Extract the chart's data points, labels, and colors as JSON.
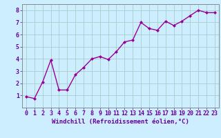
{
  "x": [
    0,
    1,
    2,
    3,
    4,
    5,
    6,
    7,
    8,
    9,
    10,
    11,
    12,
    13,
    14,
    15,
    16,
    17,
    18,
    19,
    20,
    21,
    22,
    23
  ],
  "y": [
    0.9,
    0.75,
    2.1,
    3.9,
    1.45,
    1.45,
    2.7,
    3.3,
    4.0,
    4.2,
    3.95,
    4.6,
    5.4,
    5.55,
    7.0,
    6.5,
    6.35,
    7.1,
    6.75,
    7.1,
    7.55,
    8.0,
    7.8,
    7.8
  ],
  "line_color": "#990099",
  "marker": "D",
  "marker_color": "#990099",
  "marker_size": 2.0,
  "xlabel": "Windchill (Refroidissement éolien,°C)",
  "xlim_min": -0.5,
  "xlim_max": 23.5,
  "ylim_min": 0,
  "ylim_max": 8.5,
  "yticks": [
    1,
    2,
    3,
    4,
    5,
    6,
    7,
    8
  ],
  "xticks": [
    0,
    1,
    2,
    3,
    4,
    5,
    6,
    7,
    8,
    9,
    10,
    11,
    12,
    13,
    14,
    15,
    16,
    17,
    18,
    19,
    20,
    21,
    22,
    23
  ],
  "bg_color": "#cceeff",
  "grid_color": "#aacccc",
  "xlabel_fontsize": 6.5,
  "tick_fontsize": 6,
  "xlabel_color": "#660099",
  "tick_color": "#660099",
  "line_width": 1.0,
  "spine_color": "#888888"
}
